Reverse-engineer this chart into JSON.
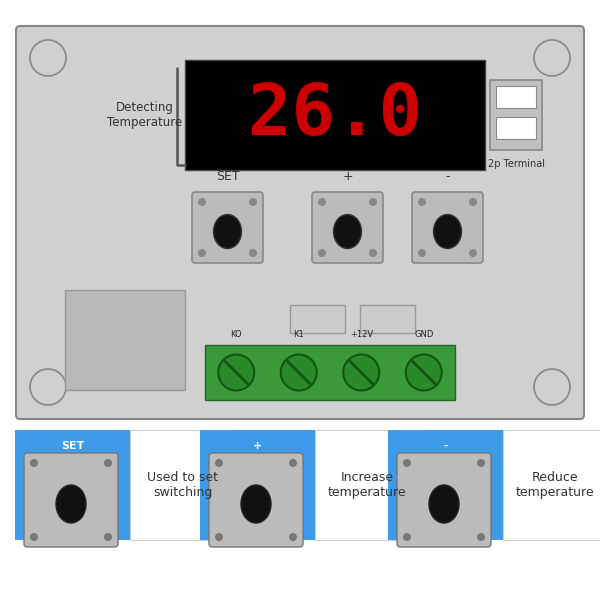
{
  "bg_color": "#ffffff",
  "panel_color": "#d0d0d0",
  "panel_border": "#888888",
  "display_bg": "#000000",
  "display_text": "26.0",
  "display_color": "#cc0000",
  "detecting_label": "Detecting\nTemperature",
  "button_labels": [
    "SET",
    "+",
    "-"
  ],
  "terminal_label": "2p Terminal",
  "connector_labels": [
    "KO",
    "K1",
    "+12V",
    "GND"
  ],
  "bottom_labels": [
    "Used to set\nswitching",
    "Increase\ntemperature",
    "Reduce\ntemperature"
  ],
  "bottom_button_labels": [
    "SET",
    "+",
    "-"
  ],
  "blue_color": "#3d9be9",
  "green_color": "#3a9a3a",
  "btn_face_color": "#bbbbbb",
  "btn_circle_color": "#111111"
}
